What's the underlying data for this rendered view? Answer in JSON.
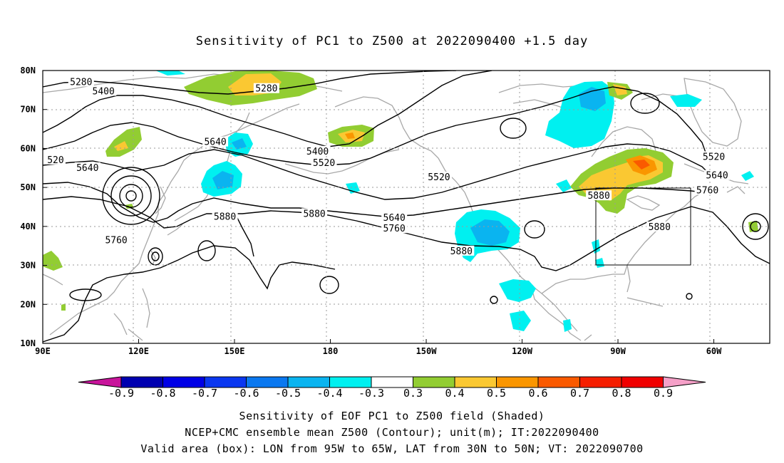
{
  "title": "Sensitivity of PC1 to Z500 at 2022090400 +1.5 day",
  "lat_ticks": [
    "80N",
    "70N",
    "60N",
    "50N",
    "40N",
    "30N",
    "20N",
    "10N"
  ],
  "lon_ticks": [
    "90E",
    "120E",
    "150E",
    "180",
    "150W",
    "120W",
    "90W",
    "60W"
  ],
  "contour_labels": [
    {
      "text": "5280",
      "lon": 102,
      "lat": 77
    },
    {
      "text": "5400",
      "lon": 109,
      "lat": 74.6
    },
    {
      "text": "5280",
      "lon": 160,
      "lat": 75.3
    },
    {
      "text": "520",
      "lon": 94,
      "lat": 57
    },
    {
      "text": "5640",
      "lon": 104,
      "lat": 55
    },
    {
      "text": "5640",
      "lon": 144,
      "lat": 61.6
    },
    {
      "text": "5400",
      "lon": 176,
      "lat": 59.2
    },
    {
      "text": "5520",
      "lon": 178,
      "lat": 56.2
    },
    {
      "text": "5520",
      "lon": 214,
      "lat": 52.6
    },
    {
      "text": "5880",
      "lon": 147,
      "lat": 42.4
    },
    {
      "text": "5880",
      "lon": 175,
      "lat": 43.2
    },
    {
      "text": "5640",
      "lon": 200,
      "lat": 42.2
    },
    {
      "text": "5760",
      "lon": 200,
      "lat": 39.4
    },
    {
      "text": "5760",
      "lon": 113,
      "lat": 36.4
    },
    {
      "text": "5880",
      "lon": 221,
      "lat": 33.6
    },
    {
      "text": "5880",
      "lon": 264,
      "lat": 47.8
    },
    {
      "text": "5520",
      "lon": 300,
      "lat": 57.8
    },
    {
      "text": "5640",
      "lon": 301,
      "lat": 53
    },
    {
      "text": "5760",
      "lon": 298,
      "lat": 49.2
    },
    {
      "text": "5880",
      "lon": 283,
      "lat": 39.8
    }
  ],
  "colorbar": {
    "labels": [
      "-0.9",
      "-0.8",
      "-0.7",
      "-0.6",
      "-0.5",
      "-0.4",
      "-0.3",
      "0.3",
      "0.4",
      "0.5",
      "0.6",
      "0.7",
      "0.8",
      "0.9"
    ],
    "colors": [
      "#0000b0",
      "#0000e6",
      "#0a37f0",
      "#0a78f0",
      "#0ab4f0",
      "#00f0f0",
      "#ffffff",
      "#92cd32",
      "#fac832",
      "#fa9600",
      "#fa5a00",
      "#f51e00",
      "#f00000"
    ],
    "low_end_color": "#c8149b",
    "high_end_color": "#f5a0c8"
  },
  "valid_box": {
    "lon_min": -95,
    "lon_max": -65,
    "lat_min": 30,
    "lat_max": 50
  },
  "captions": [
    "Sensitivity of EOF PC1 to Z500 field (Shaded)",
    "NCEP+CMC ensemble mean Z500 (Contour); unit(m); IT:2022090400",
    "Valid area (box): LON from 95W to 65W, LAT from 30N to 50N; VT: 2022090700"
  ]
}
